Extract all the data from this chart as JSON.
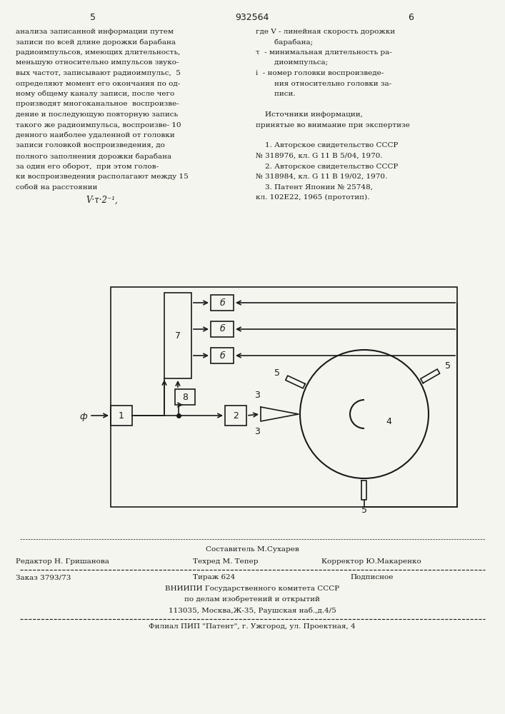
{
  "bg_color": "#f5f5f0",
  "page_color": "#f5f5f0",
  "text_color": "#1a1a1a",
  "line_color": "#1a1a1a",
  "header_num_left": "5",
  "header_center": "932564",
  "header_num_right": "6",
  "col_left_text": [
    "анализа записанной информации путем",
    "записи по всей длине дорожки барабана",
    "радиоимпульсов, имеющих длительность,",
    "меньшую относительно импульсов звуко-",
    "вых частот, записывают радиоимпульс,  5",
    "определяют момент его окончания по од-",
    "ному общему каналу записи, после чего",
    "производят многоканальное  воспроизве-",
    "дение и последующую повторную запись",
    "такого же радиоимпульса, воспроизве- 10",
    "денного наиболее удаленной от головки",
    "записи головкой воспроизведения, до",
    "полного заполнения дорожки барабана",
    "за один его оборот,  при этом голов-",
    "ки воспроизведения располагают между 15",
    "собой на расстоянии"
  ],
  "formula_text": "V·τ·2⁻¹,",
  "col_right_text_lines": [
    [
      "где V - линейная скорость дорожки"
    ],
    [
      "        барабана;"
    ],
    [
      "τ  - минимальная длительность ра-"
    ],
    [
      "        диоимпульса;"
    ],
    [
      "i  - номер головки воспроизведе-"
    ],
    [
      "        ния относительно головки за-"
    ],
    [
      "        писи."
    ],
    [
      ""
    ],
    [
      "    Источники информации,"
    ],
    [
      "принятые во внимание при экспертизе"
    ],
    [
      ""
    ],
    [
      "    1. Авторское свидетельство СССР"
    ],
    [
      "№ 318976, кл. G 11 B 5/04, 1970."
    ],
    [
      "    2. Авторское свидетельство СССР"
    ],
    [
      "№ 318984, кл. G 11 B 19/02, 1970."
    ],
    [
      "    3. Патент Японии № 25748,"
    ],
    [
      "кл. 102E22, 1965 (прототип)."
    ]
  ],
  "footer_line1": "Составитель М.Сухарев",
  "footer_line2_left": "Редактор Н. Гришанова",
  "footer_line2_mid": "Техред М. Тепер",
  "footer_line2_right": "Корректор Ю.Макаренко",
  "footer_line3_left": "Заказ 3793/73",
  "footer_line3_mid": "Тираж 624",
  "footer_line3_right": "Подписное",
  "footer_line4": "ВНИИПИ Государственного комитета СССР",
  "footer_line5": "по делам изобретений и открытий",
  "footer_line6": "113035, Москва,Ж-35, Раушская наб.,д.4/5",
  "footer_line7": "Филиал ПИП \"Патент\", г. Ужгород, ул. Проектная, 4"
}
